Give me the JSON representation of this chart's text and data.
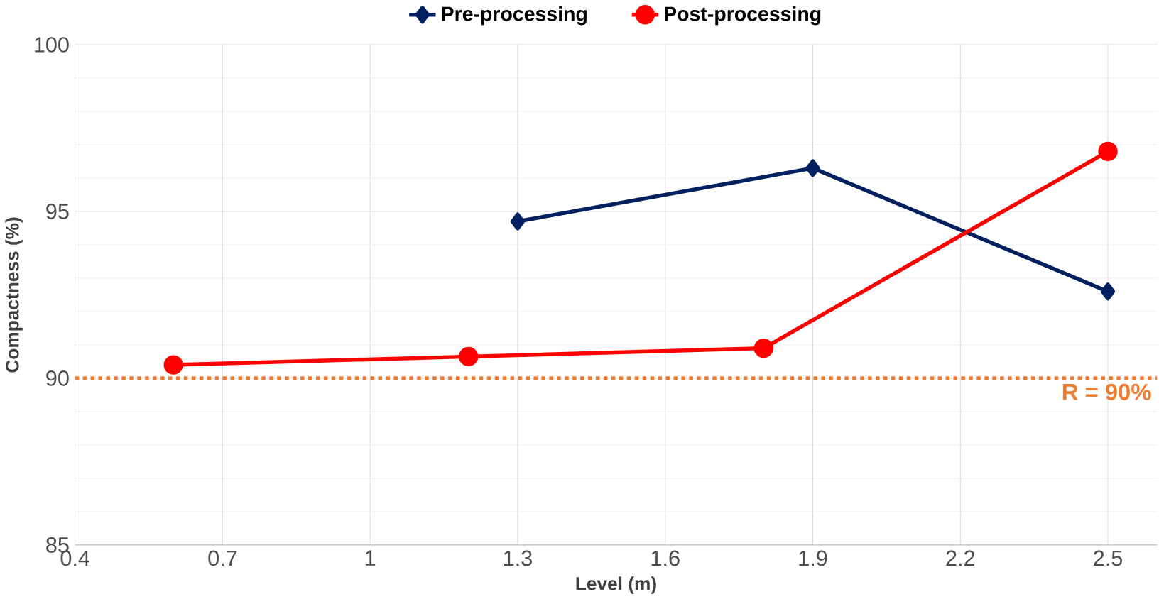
{
  "chart_data": {
    "type": "line",
    "xlabel": "Level (m)",
    "ylabel": "Compactness (%)",
    "xlim": [
      0.4,
      2.6
    ],
    "xticks": [
      0.4,
      0.7,
      1,
      1.3,
      1.6,
      1.9,
      2.2,
      2.5
    ],
    "ylim": [
      85,
      100
    ],
    "yticks": [
      85,
      90,
      95,
      100
    ],
    "grid": true,
    "legend": "top",
    "series": [
      {
        "name": "Pre-processing",
        "color": "#002060",
        "marker": "diamond",
        "x": [
          1.3,
          1.9,
          2.5
        ],
        "values": [
          94.7,
          96.3,
          92.6
        ]
      },
      {
        "name": "Post-processing",
        "color": "#ff0000",
        "marker": "circle",
        "x": [
          0.6,
          1.2,
          1.8,
          2.5
        ],
        "values": [
          90.4,
          90.65,
          90.9,
          96.8
        ]
      }
    ],
    "ref_lines": [
      {
        "axis": "y",
        "value": 90,
        "label": "R = 90%",
        "color": "#ed7d31",
        "line_style": "dotted"
      }
    ]
  }
}
